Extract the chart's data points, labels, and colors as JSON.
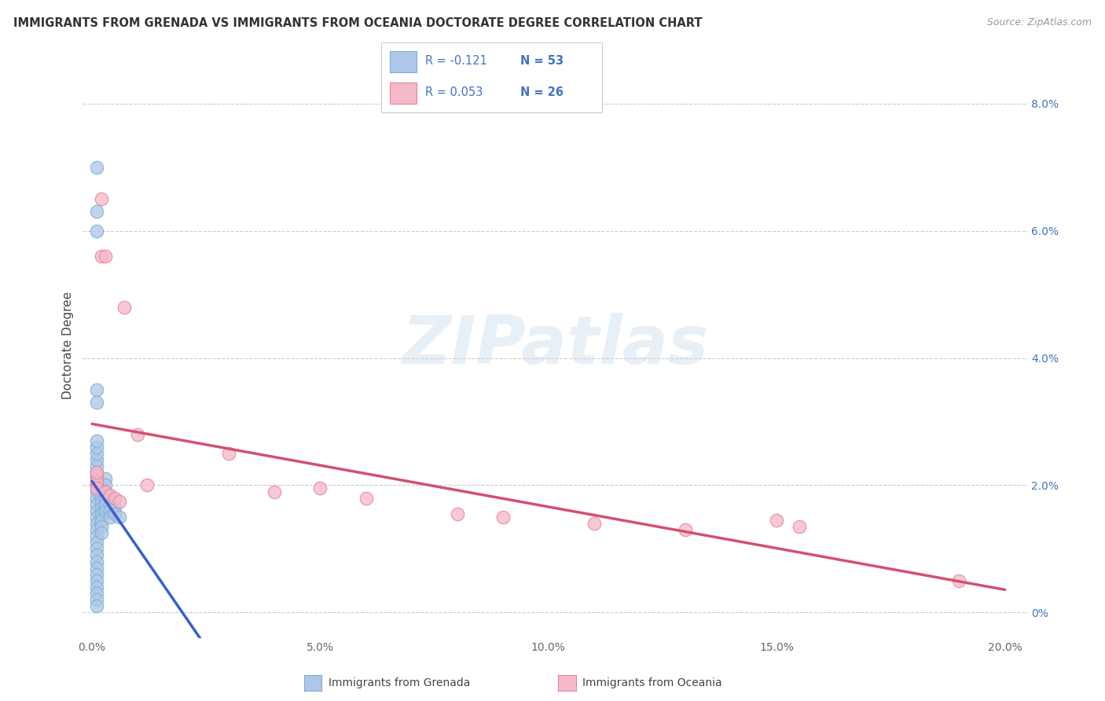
{
  "title": "IMMIGRANTS FROM GRENADA VS IMMIGRANTS FROM OCEANIA DOCTORATE DEGREE CORRELATION CHART",
  "source": "Source: ZipAtlas.com",
  "ylabel": "Doctorate Degree",
  "right_ytick_vals": [
    0.0,
    0.02,
    0.04,
    0.06,
    0.08
  ],
  "right_ytick_labels": [
    "0%",
    "2.0%",
    "4.0%",
    "6.0%",
    "8.0%"
  ],
  "xtick_vals": [
    0.0,
    0.05,
    0.1,
    0.15,
    0.2
  ],
  "xtick_labels": [
    "0.0%",
    "5.0%",
    "10.0%",
    "15.0%",
    "20.0%"
  ],
  "xlim": [
    -0.002,
    0.205
  ],
  "ylim": [
    -0.004,
    0.088
  ],
  "legend_R1": "R = -0.121",
  "legend_N1": "N = 53",
  "legend_R2": "R = 0.053",
  "legend_N2": "N = 26",
  "legend_label1": "Immigrants from Grenada",
  "legend_label2": "Immigrants from Oceania",
  "color_grenada_fill": "#aec6e8",
  "color_grenada_edge": "#7aafd4",
  "color_oceania_fill": "#f4b8c8",
  "color_oceania_edge": "#e8849a",
  "trend_grenada": "#3a5fcd",
  "trend_oceania": "#d45070",
  "watermark_text": "ZIPatlas",
  "grenada_x": [
    0.001,
    0.001,
    0.001,
    0.001,
    0.001,
    0.001,
    0.001,
    0.001,
    0.001,
    0.001,
    0.001,
    0.001,
    0.001,
    0.001,
    0.001,
    0.001,
    0.001,
    0.001,
    0.001,
    0.001,
    0.001,
    0.001,
    0.001,
    0.001,
    0.001,
    0.001,
    0.001,
    0.002,
    0.002,
    0.002,
    0.002,
    0.002,
    0.002,
    0.002,
    0.002,
    0.003,
    0.003,
    0.003,
    0.003,
    0.003,
    0.003,
    0.004,
    0.004,
    0.004,
    0.004,
    0.005,
    0.005,
    0.006,
    0.001,
    0.001,
    0.001,
    0.001,
    0.001
  ],
  "grenada_y": [
    0.02,
    0.019,
    0.018,
    0.017,
    0.016,
    0.015,
    0.014,
    0.013,
    0.012,
    0.011,
    0.01,
    0.009,
    0.008,
    0.007,
    0.006,
    0.005,
    0.004,
    0.003,
    0.002,
    0.001,
    0.021,
    0.022,
    0.023,
    0.024,
    0.025,
    0.026,
    0.027,
    0.0195,
    0.0185,
    0.0175,
    0.0165,
    0.0155,
    0.0145,
    0.0135,
    0.0125,
    0.021,
    0.02,
    0.019,
    0.018,
    0.017,
    0.016,
    0.018,
    0.017,
    0.016,
    0.015,
    0.0165,
    0.0155,
    0.015,
    0.07,
    0.063,
    0.06,
    0.035,
    0.033
  ],
  "oceania_x": [
    0.001,
    0.001,
    0.001,
    0.001,
    0.001,
    0.002,
    0.002,
    0.003,
    0.003,
    0.004,
    0.005,
    0.006,
    0.007,
    0.01,
    0.012,
    0.03,
    0.04,
    0.05,
    0.06,
    0.08,
    0.09,
    0.11,
    0.13,
    0.15,
    0.155,
    0.19
  ],
  "oceania_y": [
    0.02,
    0.0215,
    0.0205,
    0.022,
    0.0195,
    0.065,
    0.056,
    0.056,
    0.019,
    0.0185,
    0.018,
    0.0175,
    0.048,
    0.028,
    0.02,
    0.025,
    0.019,
    0.0195,
    0.018,
    0.0155,
    0.015,
    0.014,
    0.013,
    0.0145,
    0.0135,
    0.005
  ]
}
